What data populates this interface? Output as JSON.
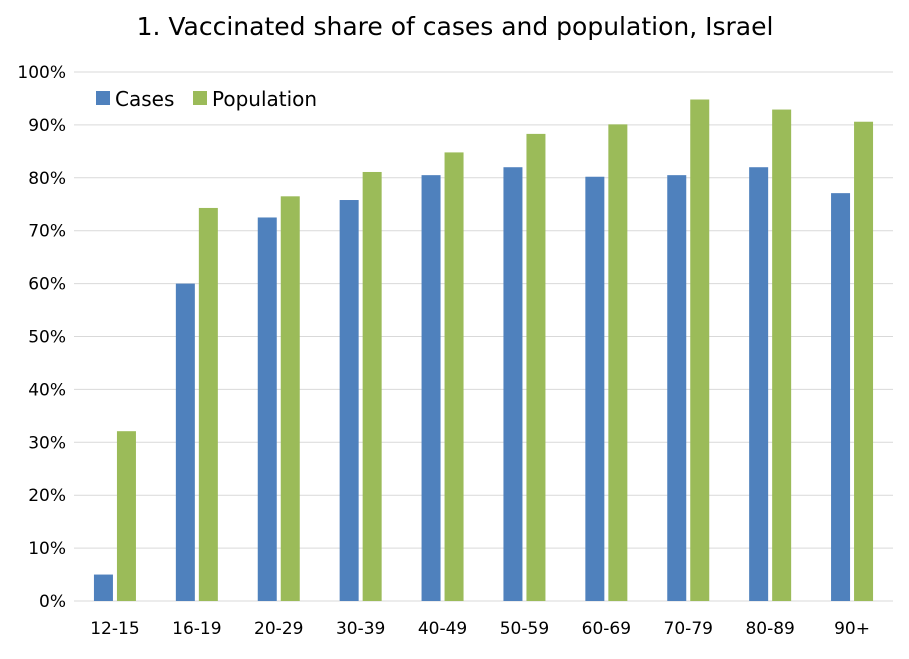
{
  "chart_data": {
    "type": "bar",
    "title": "1. Vaccinated share of cases and population, Israel",
    "categories": [
      "12-15",
      "16-19",
      "20-29",
      "30-39",
      "40-49",
      "50-59",
      "60-69",
      "70-79",
      "80-89",
      "90+"
    ],
    "series": [
      {
        "name": "Cases",
        "color": "#4f81bd",
        "values": [
          5,
          60,
          72.5,
          75.8,
          80.5,
          82,
          80.2,
          80.5,
          82,
          77.1
        ]
      },
      {
        "name": "Population",
        "color": "#9bbb59",
        "values": [
          32.1,
          74.3,
          76.5,
          81.1,
          84.8,
          88.3,
          90.1,
          94.8,
          92.9,
          90.6
        ]
      }
    ],
    "yticks": [
      "0%",
      "10%",
      "20%",
      "30%",
      "40%",
      "50%",
      "60%",
      "70%",
      "80%",
      "90%",
      "100%"
    ],
    "ylim": [
      0,
      100
    ],
    "xlabel": "",
    "ylabel": "",
    "grid": true,
    "legend_position": "top-left"
  }
}
